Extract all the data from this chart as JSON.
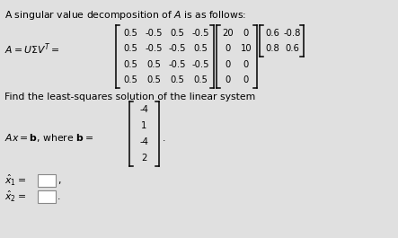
{
  "bg_color": "#e0e0e0",
  "title_text": "A singular value decomposition of $\\mathit{A}$ is as follows:",
  "equation_label": "$A = U\\Sigma V^T =$",
  "U_matrix": [
    [
      "0.5",
      "-0.5",
      "0.5",
      "-0.5"
    ],
    [
      "0.5",
      "-0.5",
      "-0.5",
      "0.5"
    ],
    [
      "0.5",
      "0.5",
      "-0.5",
      "-0.5"
    ],
    [
      "0.5",
      "0.5",
      "0.5",
      "0.5"
    ]
  ],
  "Sigma_matrix": [
    [
      "20",
      "0"
    ],
    [
      "0",
      "10"
    ],
    [
      "0",
      "0"
    ],
    [
      "0",
      "0"
    ]
  ],
  "VT_matrix": [
    [
      "0.6",
      "-0.8"
    ],
    [
      "0.8",
      "0.6"
    ]
  ],
  "find_text": "Find the least-squares solution of the linear system",
  "b_vector": [
    "-4",
    "1",
    "-4",
    "2"
  ],
  "ax_eq_b_text": "$Ax = \\mathbf{b}$, where $\\mathbf{b} =$",
  "xhat1_label": "$\\hat{x}_1 =$",
  "xhat2_label": "$\\hat{x}_2 =$",
  "title_fontsize": 7.8,
  "matrix_fontsize": 7.2,
  "label_fontsize": 7.8
}
